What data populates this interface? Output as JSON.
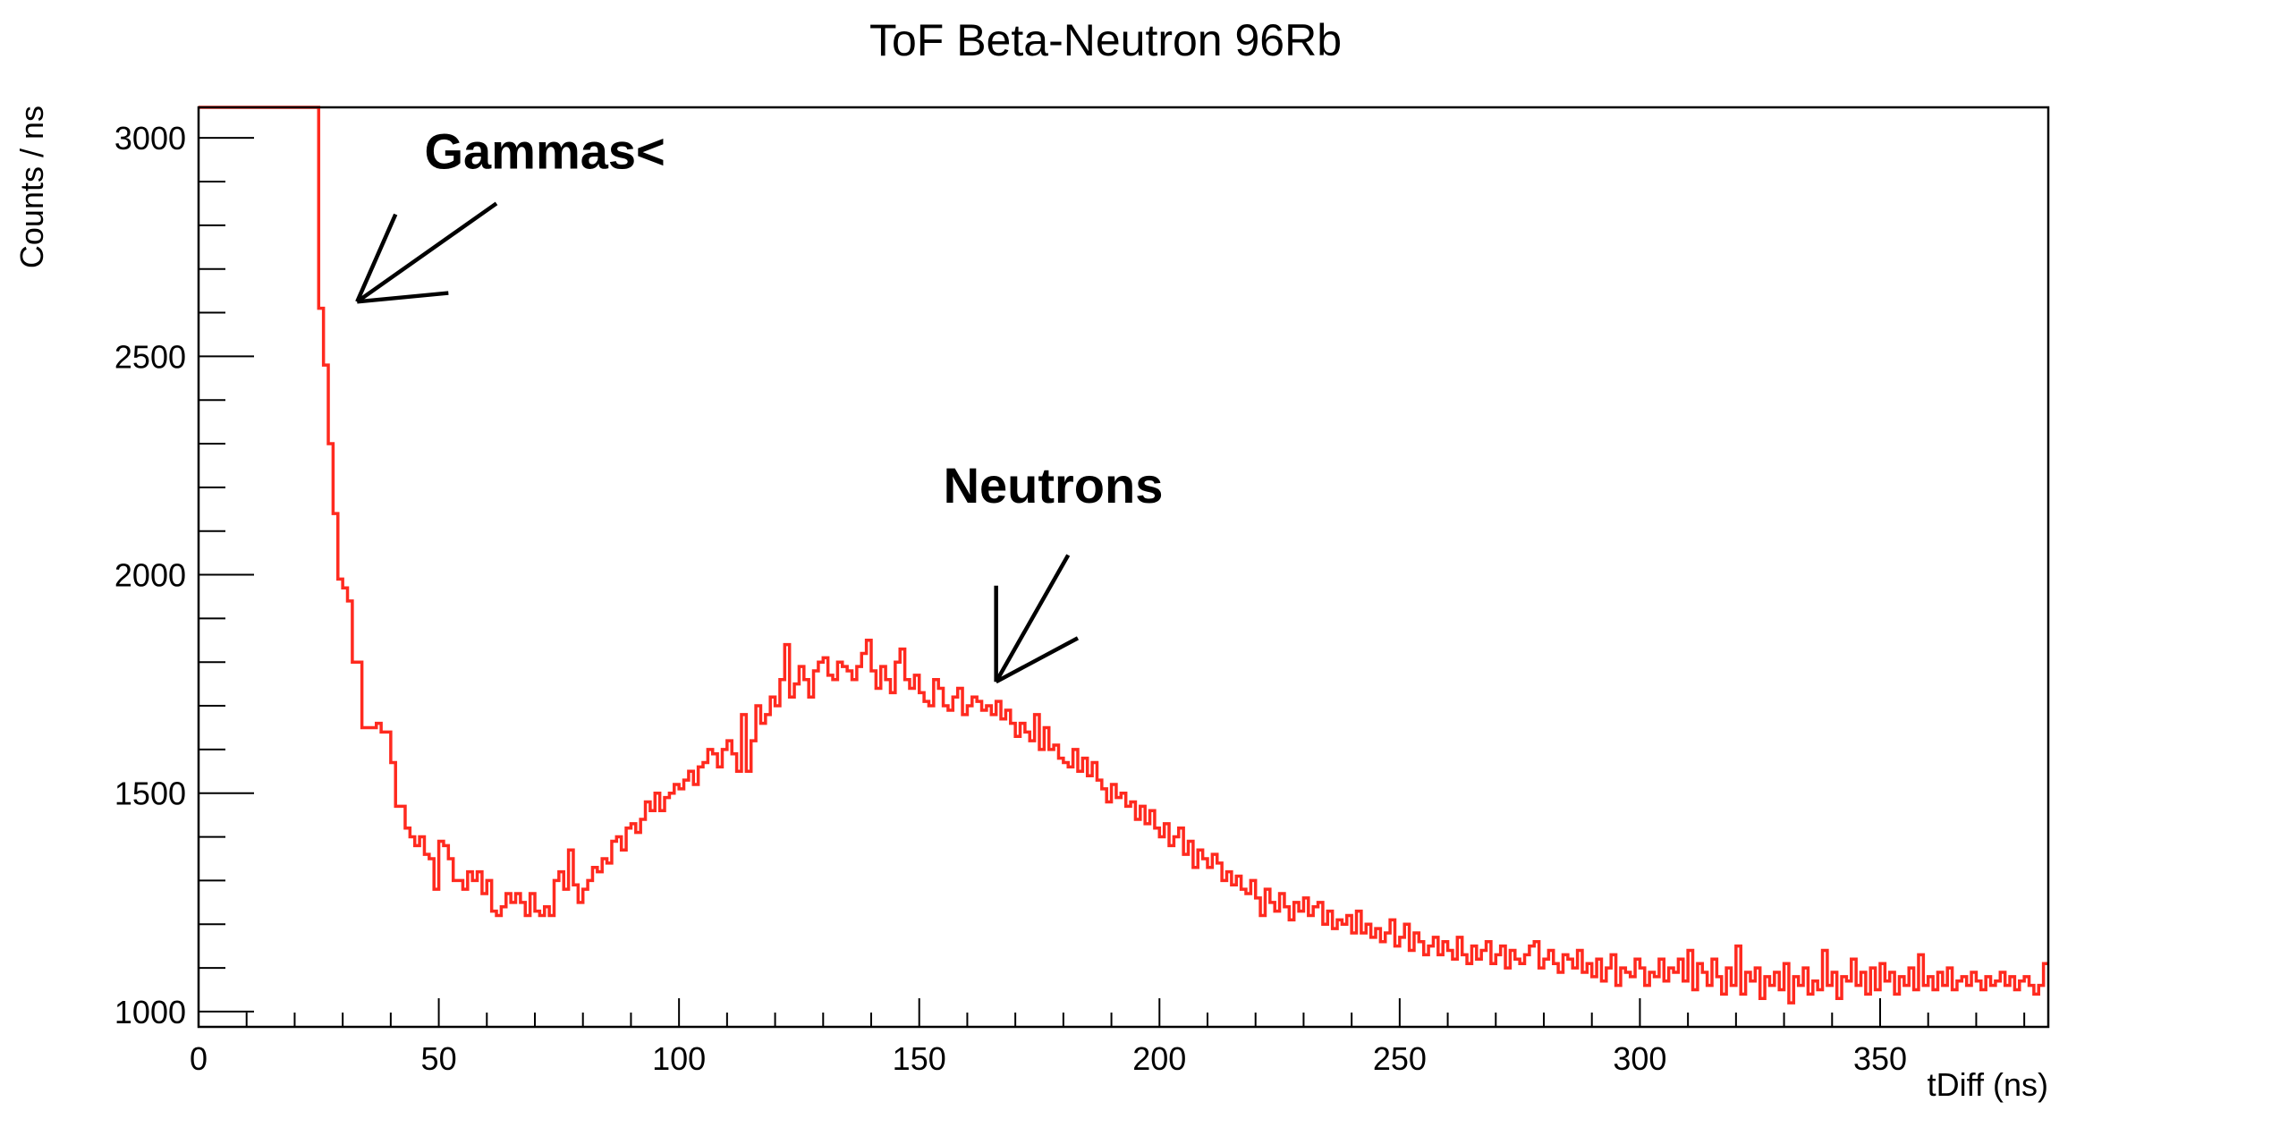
{
  "chart_data": {
    "type": "line",
    "style": "step-histogram",
    "title": "ToF Beta-Neutron 96Rb",
    "xlabel": "tDiff (ns)",
    "ylabel": "Counts / ns",
    "xlim": [
      0,
      385
    ],
    "ylim": [
      965,
      3070
    ],
    "grid": false,
    "legend": "none",
    "line_color": "#ff2a1f",
    "x_ticks": [
      0,
      50,
      100,
      150,
      200,
      250,
      300,
      350
    ],
    "x_tick_labels": [
      "0",
      "50",
      "100",
      "150",
      "200",
      "250",
      "300",
      "350"
    ],
    "y_ticks": [
      1000,
      1500,
      2000,
      2500,
      3000
    ],
    "y_tick_labels": [
      "1000",
      "1500",
      "2000",
      "2500",
      "3000"
    ],
    "bin_width": 1,
    "x_start": 0,
    "series": [
      {
        "values": [
          3070,
          3070,
          3070,
          3070,
          3070,
          3070,
          3070,
          3070,
          3070,
          3070,
          3070,
          3070,
          3070,
          3070,
          3070,
          3070,
          3070,
          3070,
          3070,
          3070,
          3070,
          3070,
          3070,
          3070,
          3070,
          2610,
          2480,
          2300,
          2140,
          1990,
          1970,
          1940,
          1800,
          1800,
          1650,
          1650,
          1650,
          1660,
          1640,
          1640,
          1570,
          1470,
          1470,
          1420,
          1400,
          1380,
          1400,
          1360,
          1350,
          1280,
          1390,
          1380,
          1350,
          1300,
          1300,
          1280,
          1320,
          1300,
          1320,
          1270,
          1300,
          1230,
          1220,
          1240,
          1270,
          1250,
          1270,
          1250,
          1220,
          1270,
          1230,
          1220,
          1240,
          1220,
          1300,
          1320,
          1280,
          1370,
          1290,
          1250,
          1280,
          1300,
          1330,
          1320,
          1350,
          1340,
          1390,
          1400,
          1370,
          1420,
          1430,
          1410,
          1440,
          1480,
          1460,
          1500,
          1460,
          1490,
          1500,
          1520,
          1510,
          1530,
          1550,
          1520,
          1560,
          1570,
          1600,
          1590,
          1560,
          1600,
          1620,
          1590,
          1550,
          1680,
          1550,
          1620,
          1700,
          1660,
          1680,
          1720,
          1700,
          1760,
          1840,
          1720,
          1750,
          1790,
          1760,
          1720,
          1780,
          1800,
          1810,
          1770,
          1760,
          1800,
          1790,
          1780,
          1760,
          1790,
          1820,
          1850,
          1780,
          1740,
          1790,
          1760,
          1730,
          1800,
          1830,
          1760,
          1740,
          1770,
          1730,
          1710,
          1700,
          1760,
          1740,
          1700,
          1690,
          1720,
          1740,
          1680,
          1700,
          1720,
          1710,
          1690,
          1700,
          1680,
          1710,
          1670,
          1690,
          1660,
          1630,
          1660,
          1640,
          1620,
          1680,
          1600,
          1650,
          1600,
          1610,
          1580,
          1570,
          1560,
          1600,
          1550,
          1580,
          1540,
          1570,
          1530,
          1510,
          1480,
          1520,
          1490,
          1500,
          1470,
          1480,
          1440,
          1470,
          1430,
          1460,
          1420,
          1400,
          1430,
          1380,
          1400,
          1420,
          1360,
          1390,
          1330,
          1370,
          1350,
          1330,
          1360,
          1340,
          1300,
          1320,
          1290,
          1310,
          1280,
          1270,
          1300,
          1260,
          1220,
          1280,
          1250,
          1230,
          1270,
          1240,
          1210,
          1250,
          1230,
          1260,
          1220,
          1240,
          1250,
          1200,
          1230,
          1190,
          1210,
          1200,
          1220,
          1180,
          1230,
          1180,
          1200,
          1170,
          1190,
          1160,
          1180,
          1210,
          1150,
          1170,
          1200,
          1140,
          1180,
          1160,
          1130,
          1150,
          1170,
          1130,
          1160,
          1140,
          1120,
          1170,
          1130,
          1110,
          1150,
          1120,
          1140,
          1160,
          1110,
          1130,
          1150,
          1100,
          1140,
          1120,
          1110,
          1130,
          1150,
          1160,
          1100,
          1120,
          1140,
          1110,
          1090,
          1130,
          1120,
          1100,
          1140,
          1090,
          1110,
          1080,
          1120,
          1070,
          1100,
          1130,
          1060,
          1100,
          1090,
          1080,
          1120,
          1100,
          1060,
          1090,
          1080,
          1120,
          1070,
          1100,
          1090,
          1120,
          1070,
          1140,
          1050,
          1110,
          1090,
          1060,
          1120,
          1080,
          1040,
          1100,
          1060,
          1150,
          1040,
          1090,
          1070,
          1100,
          1030,
          1080,
          1060,
          1090,
          1050,
          1110,
          1020,
          1080,
          1060,
          1100,
          1040,
          1070,
          1050,
          1140,
          1060,
          1090,
          1030,
          1080,
          1070,
          1120,
          1060,
          1090,
          1040,
          1100,
          1050,
          1110,
          1070,
          1090,
          1040,
          1080,
          1060,
          1100,
          1050,
          1130,
          1060,
          1080,
          1050,
          1090,
          1060,
          1100,
          1050,
          1070,
          1080,
          1060,
          1090,
          1070,
          1050,
          1080,
          1060,
          1070,
          1090,
          1060,
          1080,
          1050,
          1070,
          1080,
          1060,
          1040,
          1060,
          1110
        ]
      }
    ],
    "annotations": [
      {
        "text": "Gammas<",
        "x": 47,
        "y": 2930,
        "arrow_tip": [
          33,
          2625
        ],
        "arrow_tail_1": [
          41,
          2825
        ],
        "arrow_tail_2": [
          52,
          2645
        ]
      },
      {
        "text": "Neutrons",
        "x": 155,
        "y": 2165,
        "arrow_tip": [
          166,
          1755
        ],
        "arrow_tail_1": [
          166,
          1975
        ],
        "arrow_tail_2": [
          183,
          1855
        ]
      }
    ]
  }
}
